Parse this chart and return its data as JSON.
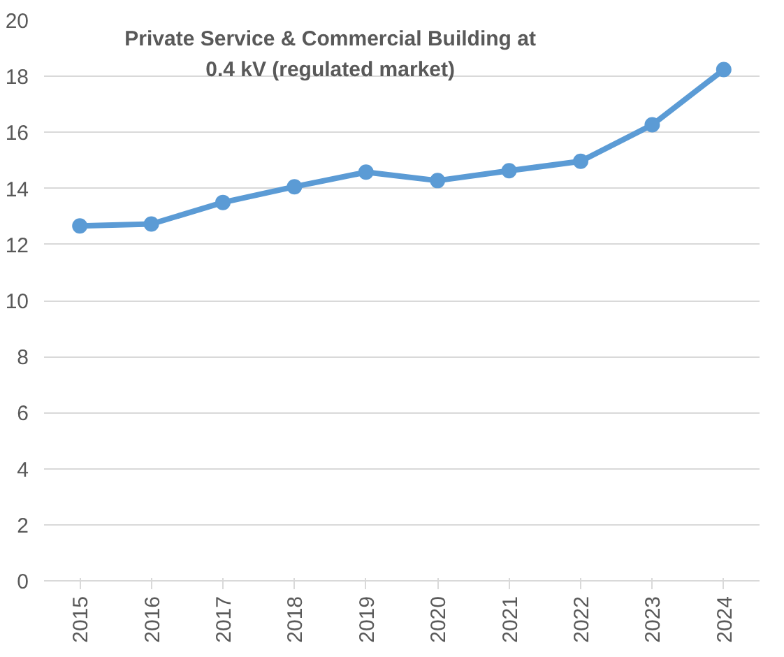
{
  "chart_data": {
    "type": "line",
    "title": "Private Service & Commercial Building at 0.4 kV (regulated market)",
    "categories": [
      "2015",
      "2016",
      "2017",
      "2018",
      "2019",
      "2020",
      "2021",
      "2022",
      "2023",
      "2024"
    ],
    "series": [
      {
        "color": "#5b9bd5",
        "values": [
          12.66,
          12.73,
          13.5,
          14.06,
          14.58,
          14.28,
          14.63,
          14.97,
          16.27,
          18.24
        ]
      }
    ],
    "ylim": [
      0,
      20
    ],
    "yticks": [
      0,
      2,
      4,
      6,
      8,
      10,
      12,
      14,
      16,
      18,
      20
    ],
    "grid": "y",
    "marker": "circle",
    "line_style": "solid"
  }
}
